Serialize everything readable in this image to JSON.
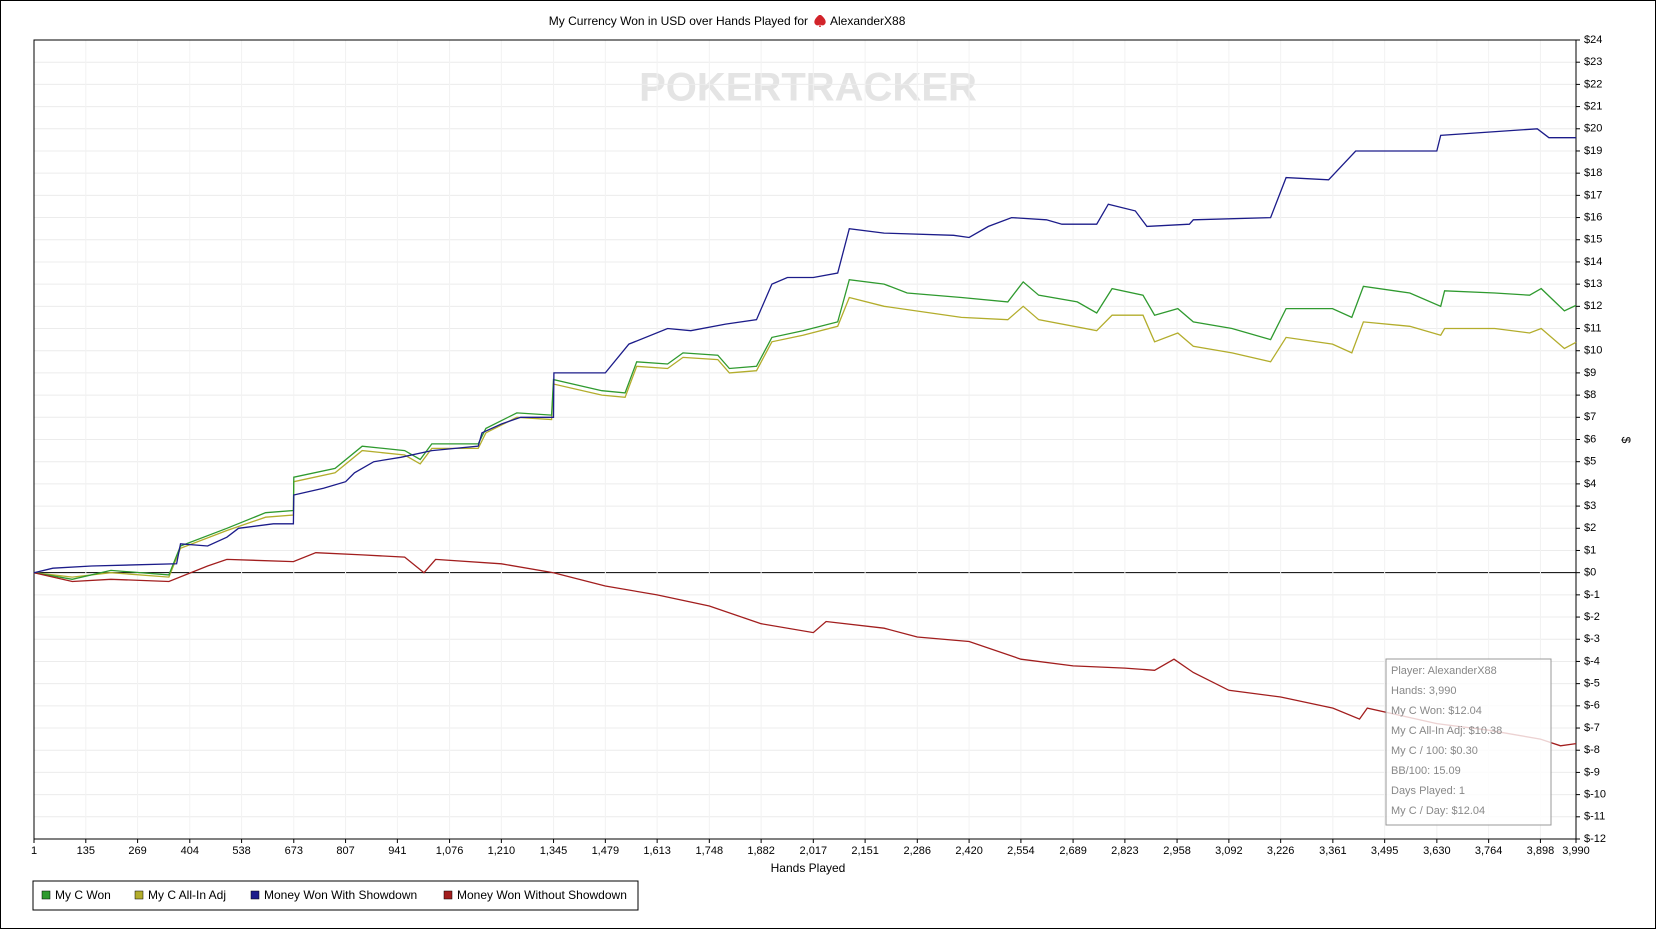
{
  "chart_data": {
    "type": "line",
    "title": "My Currency Won in USD over Hands Played for",
    "player": "AlexanderX88",
    "watermark": "POKERTRACKER",
    "x_label": "Hands Played",
    "y_label": "$",
    "xlim": [
      1,
      3990
    ],
    "ylim": [
      -12,
      24
    ],
    "grid": true,
    "legend": "bottom-left",
    "xticks": [
      1,
      135,
      269,
      404,
      538,
      673,
      807,
      941,
      {
        "value": 1076,
        "label": "1,076"
      },
      {
        "value": 1210,
        "label": "1,210"
      },
      {
        "value": 1345,
        "label": "1,345"
      },
      {
        "value": 1479,
        "label": "1,479"
      },
      {
        "value": 1613,
        "label": "1,613"
      },
      {
        "value": 1748,
        "label": "1,748"
      },
      {
        "value": 1882,
        "label": "1,882"
      },
      {
        "value": 2017,
        "label": "2,017"
      },
      {
        "value": 2151,
        "label": "2,151"
      },
      {
        "value": 2286,
        "label": "2,286"
      },
      {
        "value": 2420,
        "label": "2,420"
      },
      {
        "value": 2554,
        "label": "2,554"
      },
      {
        "value": 2689,
        "label": "2,689"
      },
      {
        "value": 2823,
        "label": "2,823"
      },
      {
        "value": 2958,
        "label": "2,958"
      },
      {
        "value": 3092,
        "label": "3,092"
      },
      {
        "value": 3226,
        "label": "3,226"
      },
      {
        "value": 3361,
        "label": "3,361"
      },
      {
        "value": 3495,
        "label": "3,495"
      },
      {
        "value": 3630,
        "label": "3,630"
      },
      {
        "value": 3764,
        "label": "3,764"
      },
      {
        "value": 3898,
        "label": "3,898"
      },
      {
        "value": 3990,
        "label": "3,990"
      }
    ],
    "yticks": [
      {
        "value": 24,
        "label": "$24"
      },
      {
        "value": 23,
        "label": "$23"
      },
      {
        "value": 22,
        "label": "$22"
      },
      {
        "value": 21,
        "label": "$21"
      },
      {
        "value": 20,
        "label": "$20"
      },
      {
        "value": 19,
        "label": "$19"
      },
      {
        "value": 18,
        "label": "$18"
      },
      {
        "value": 17,
        "label": "$17"
      },
      {
        "value": 16,
        "label": "$16"
      },
      {
        "value": 15,
        "label": "$15"
      },
      {
        "value": 14,
        "label": "$14"
      },
      {
        "value": 13,
        "label": "$13"
      },
      {
        "value": 12,
        "label": "$12"
      },
      {
        "value": 11,
        "label": "$11"
      },
      {
        "value": 10,
        "label": "$10"
      },
      {
        "value": 9,
        "label": "$9"
      },
      {
        "value": 8,
        "label": "$8"
      },
      {
        "value": 7,
        "label": "$7"
      },
      {
        "value": 6,
        "label": "$6"
      },
      {
        "value": 5,
        "label": "$5"
      },
      {
        "value": 4,
        "label": "$4"
      },
      {
        "value": 3,
        "label": "$3"
      },
      {
        "value": 2,
        "label": "$2"
      },
      {
        "value": 1,
        "label": "$1"
      },
      {
        "value": 0,
        "label": "$0"
      },
      {
        "value": -1,
        "label": "$-1"
      },
      {
        "value": -2,
        "label": "$-2"
      },
      {
        "value": -3,
        "label": "$-3"
      },
      {
        "value": -4,
        "label": "$-4"
      },
      {
        "value": -5,
        "label": "$-5"
      },
      {
        "value": -6,
        "label": "$-6"
      },
      {
        "value": -7,
        "label": "$-7"
      },
      {
        "value": -8,
        "label": "$-8"
      },
      {
        "value": -9,
        "label": "$-9"
      },
      {
        "value": -10,
        "label": "$-10"
      },
      {
        "value": -11,
        "label": "$-11"
      },
      {
        "value": -12,
        "label": "$-12"
      }
    ],
    "series": [
      {
        "name": "My C Won",
        "color": "#2f9a2f",
        "x": [
          1,
          100,
          200,
          350,
          380,
          500,
          600,
          672,
          673,
          780,
          850,
          960,
          1000,
          1030,
          1150,
          1170,
          1250,
          1340,
          1345,
          1470,
          1530,
          1560,
          1640,
          1680,
          1770,
          1800,
          1870,
          1910,
          1990,
          2080,
          2110,
          2200,
          2260,
          2400,
          2520,
          2560,
          2600,
          2700,
          2750,
          2790,
          2870,
          2900,
          2960,
          3000,
          3100,
          3200,
          3240,
          3360,
          3410,
          3440,
          3560,
          3640,
          3650,
          3780,
          3870,
          3900,
          3960,
          3990
        ],
        "values": [
          0,
          -0.3,
          0.1,
          -0.1,
          1.2,
          2,
          2.7,
          2.8,
          4.3,
          4.7,
          5.7,
          5.5,
          5.1,
          5.8,
          5.8,
          6.5,
          7.2,
          7.1,
          8.7,
          8.2,
          8.1,
          9.5,
          9.4,
          9.9,
          9.8,
          9.2,
          9.3,
          10.6,
          10.9,
          11.3,
          13.2,
          13,
          12.6,
          12.4,
          12.2,
          13.1,
          12.5,
          12.2,
          11.7,
          12.8,
          12.5,
          11.6,
          11.9,
          11.3,
          11,
          10.5,
          11.9,
          11.9,
          11.5,
          12.9,
          12.6,
          12,
          12.7,
          12.6,
          12.5,
          12.8,
          11.8,
          12.04
        ]
      },
      {
        "name": "My C All-In Adj",
        "color": "#b3ad2c",
        "x": [
          1,
          100,
          200,
          350,
          380,
          500,
          600,
          672,
          673,
          780,
          850,
          960,
          1000,
          1030,
          1150,
          1170,
          1250,
          1340,
          1345,
          1470,
          1530,
          1560,
          1640,
          1680,
          1770,
          1800,
          1870,
          1910,
          1990,
          2080,
          2110,
          2200,
          2400,
          2520,
          2560,
          2600,
          2750,
          2790,
          2870,
          2900,
          2960,
          3000,
          3100,
          3200,
          3240,
          3360,
          3410,
          3440,
          3560,
          3640,
          3650,
          3780,
          3870,
          3900,
          3960,
          3990
        ],
        "values": [
          0,
          -0.2,
          0,
          -0.2,
          1.1,
          1.9,
          2.5,
          2.6,
          4.1,
          4.5,
          5.5,
          5.3,
          4.9,
          5.6,
          5.6,
          6.3,
          7,
          6.9,
          8.5,
          8,
          7.9,
          9.3,
          9.2,
          9.7,
          9.6,
          9,
          9.1,
          10.4,
          10.7,
          11.1,
          12.4,
          12,
          11.5,
          11.4,
          12,
          11.4,
          10.9,
          11.6,
          11.6,
          10.4,
          10.8,
          10.2,
          9.9,
          9.5,
          10.6,
          10.3,
          9.9,
          11.3,
          11.1,
          10.7,
          11,
          11,
          10.8,
          11,
          10.1,
          10.38
        ]
      },
      {
        "name": "Money Won With Showdown",
        "color": "#1c1c8a",
        "x": [
          1,
          50,
          150,
          370,
          380,
          450,
          500,
          530,
          620,
          672,
          673,
          750,
          807,
          830,
          880,
          950,
          1030,
          1150,
          1160,
          1210,
          1260,
          1345,
          1346,
          1479,
          1540,
          1640,
          1700,
          1790,
          1870,
          1910,
          1950,
          2017,
          2080,
          2110,
          2200,
          2380,
          2420,
          2470,
          2530,
          2620,
          2660,
          2750,
          2780,
          2850,
          2880,
          2990,
          3000,
          3200,
          3240,
          3350,
          3420,
          3630,
          3640,
          3890,
          3920,
          3990
        ],
        "values": [
          0,
          0.2,
          0.3,
          0.4,
          1.3,
          1.2,
          1.6,
          2,
          2.2,
          2.2,
          3.5,
          3.8,
          4.1,
          4.5,
          5,
          5.2,
          5.5,
          5.7,
          6.3,
          6.7,
          7,
          7,
          9,
          9,
          10.3,
          11,
          10.9,
          11.2,
          11.4,
          13,
          13.3,
          13.3,
          13.5,
          15.5,
          15.3,
          15.2,
          15.1,
          15.6,
          16,
          15.9,
          15.7,
          15.7,
          16.6,
          16.3,
          15.6,
          15.7,
          15.9,
          16,
          17.8,
          17.7,
          19,
          19,
          19.7,
          20,
          19.6,
          19.6
        ]
      },
      {
        "name": "Money Won Without Showdown",
        "color": "#a21e1e",
        "x": [
          1,
          100,
          200,
          350,
          450,
          500,
          672,
          730,
          850,
          960,
          1010,
          1040,
          1210,
          1345,
          1479,
          1613,
          1748,
          1882,
          2017,
          2050,
          2200,
          2286,
          2420,
          2554,
          2689,
          2823,
          2900,
          2950,
          3000,
          3092,
          3226,
          3361,
          3430,
          3450,
          3630,
          3764,
          3898,
          3950,
          3990
        ],
        "values": [
          0,
          -0.4,
          -0.3,
          -0.4,
          0.3,
          0.6,
          0.5,
          0.9,
          0.8,
          0.7,
          0,
          0.6,
          0.4,
          0,
          -0.6,
          -1,
          -1.5,
          -2.3,
          -2.7,
          -2.2,
          -2.5,
          -2.9,
          -3.1,
          -3.9,
          -4.2,
          -4.3,
          -4.4,
          -3.9,
          -4.5,
          -5.3,
          -5.6,
          -6.1,
          -6.6,
          -6.1,
          -6.8,
          -7.1,
          -7.5,
          -7.8,
          -7.7
        ]
      }
    ],
    "tooltip": [
      "Player: AlexanderX88",
      "Hands: 3,990",
      "My C Won: $12.04",
      "My C All-In Adj: $10.38",
      "My C / 100: $0.30",
      "BB/100: 15.09",
      "Days Played: 1",
      "My C / Day: $12.04"
    ]
  }
}
